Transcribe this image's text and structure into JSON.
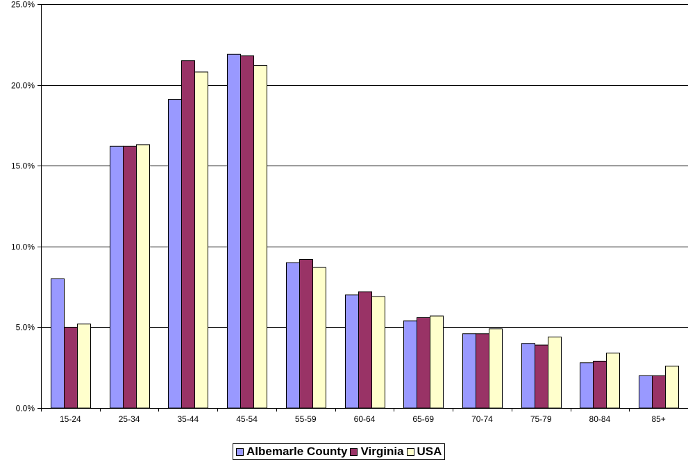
{
  "chart_data": {
    "type": "bar",
    "categories": [
      "15-24",
      "25-34",
      "35-44",
      "45-54",
      "55-59",
      "60-64",
      "65-69",
      "70-74",
      "75-79",
      "80-84",
      "85+"
    ],
    "series": [
      {
        "name": "Albemarle County",
        "color": "#9999ff",
        "values": [
          8.0,
          16.2,
          19.1,
          21.9,
          9.0,
          7.0,
          5.4,
          4.6,
          4.0,
          2.8,
          2.0
        ]
      },
      {
        "name": "Virginia",
        "color": "#993366",
        "values": [
          5.0,
          16.2,
          21.5,
          21.8,
          9.2,
          7.2,
          5.6,
          4.6,
          3.9,
          2.9,
          2.0
        ]
      },
      {
        "name": "USA",
        "color": "#ffffcc",
        "values": [
          5.2,
          16.3,
          20.8,
          21.2,
          8.7,
          6.9,
          5.7,
          4.9,
          4.4,
          3.4,
          2.6
        ]
      }
    ],
    "yticks": [
      "0.0%",
      "5.0%",
      "10.0%",
      "15.0%",
      "20.0%",
      "25.0%"
    ],
    "ylim": [
      0,
      25
    ],
    "grid": true,
    "legend_position": "bottom",
    "title": "",
    "xlabel": "",
    "ylabel": ""
  }
}
